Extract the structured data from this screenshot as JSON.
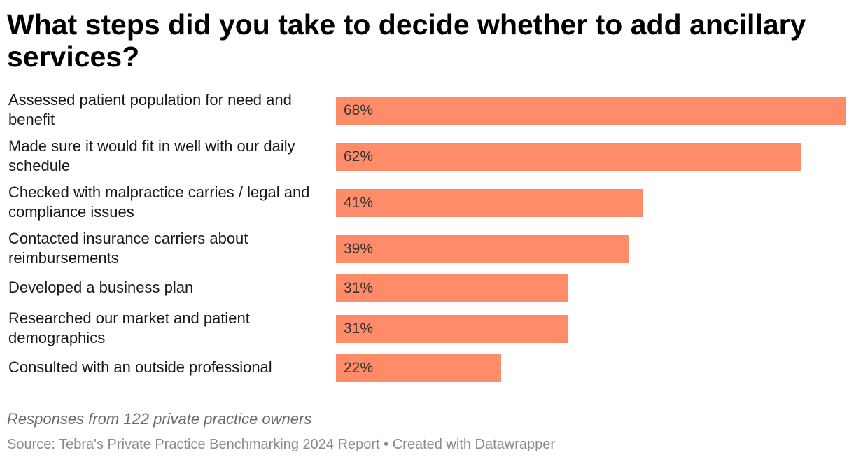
{
  "chart_data": {
    "type": "bar",
    "orientation": "horizontal",
    "title": "What steps did you take to decide whether to add ancillary services?",
    "categories": [
      "Assessed patient population for need and benefit",
      "Made sure it would fit in well with our daily schedule",
      "Checked with malpractice carries / legal and compliance issues",
      "Contacted insurance carriers about reimbursements",
      "Developed a business plan",
      "Researched our market and patient demographics",
      "Consulted with an outside professional"
    ],
    "values": [
      68,
      62,
      41,
      39,
      31,
      31,
      22
    ],
    "value_labels": [
      "68%",
      "62%",
      "41%",
      "39%",
      "31%",
      "31%",
      "22%"
    ],
    "xlim": [
      0,
      68
    ],
    "bar_color": "#ff8c69",
    "grid": false,
    "legend": "none"
  },
  "footer": {
    "note": "Responses from 122 private practice owners",
    "source": "Source: Tebra's Private Practice Benchmarking 2024 Report • Created with Datawrapper"
  }
}
